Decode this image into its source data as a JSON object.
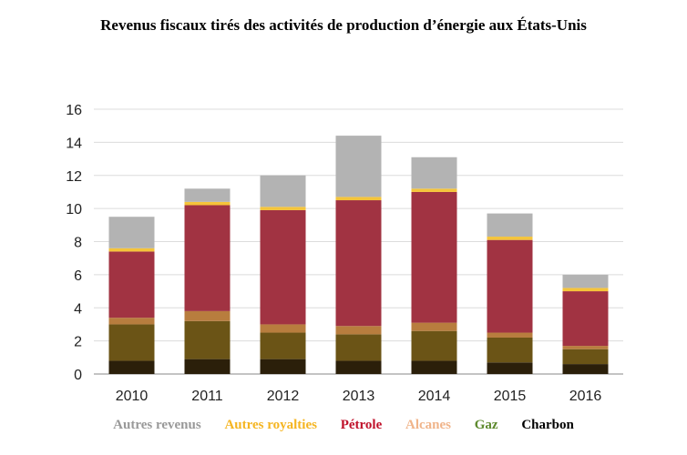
{
  "chart_data": {
    "type": "bar",
    "stacked": true,
    "title": "Revenus fiscaux tirés des activités de production d’énergie aux États-Unis",
    "xlabel": "",
    "ylabel": "",
    "ylim": [
      0,
      16
    ],
    "yticks": [
      0,
      2,
      4,
      6,
      8,
      10,
      12,
      14,
      16
    ],
    "grid": true,
    "legend_position": "bottom",
    "categories": [
      "2010",
      "2011",
      "2012",
      "2013",
      "2014",
      "2015",
      "2016"
    ],
    "series": [
      {
        "name": "Charbon",
        "color": "#2b1f0a",
        "values": [
          0.8,
          0.9,
          0.9,
          0.8,
          0.8,
          0.7,
          0.6
        ]
      },
      {
        "name": "Gaz",
        "color": "#6b5416",
        "values": [
          2.2,
          2.3,
          1.6,
          1.6,
          1.8,
          1.5,
          0.9
        ]
      },
      {
        "name": "Alcanes",
        "color": "#b87d3e",
        "values": [
          0.4,
          0.6,
          0.5,
          0.5,
          0.5,
          0.3,
          0.2
        ]
      },
      {
        "name": "Pétrole",
        "color": "#a13342",
        "values": [
          4.0,
          6.4,
          6.9,
          7.6,
          7.9,
          5.6,
          3.3
        ]
      },
      {
        "name": "Autres royalties",
        "color": "#f5c43a",
        "values": [
          0.2,
          0.2,
          0.2,
          0.2,
          0.2,
          0.2,
          0.2
        ]
      },
      {
        "name": "Autres revenus",
        "color": "#b3b3b3",
        "values": [
          1.9,
          0.8,
          1.9,
          3.7,
          1.9,
          1.4,
          0.8
        ]
      }
    ]
  },
  "legend": [
    {
      "label": "Autres revenus",
      "color": "#999999"
    },
    {
      "label": "Autres royalties",
      "color": "#f5b521"
    },
    {
      "label": "Pétrole",
      "color": "#c0122b"
    },
    {
      "label": "Alcanes",
      "color": "#f0b48a"
    },
    {
      "label": "Gaz",
      "color": "#5e8a2e"
    },
    {
      "label": "Charbon",
      "color": "#000000"
    }
  ]
}
